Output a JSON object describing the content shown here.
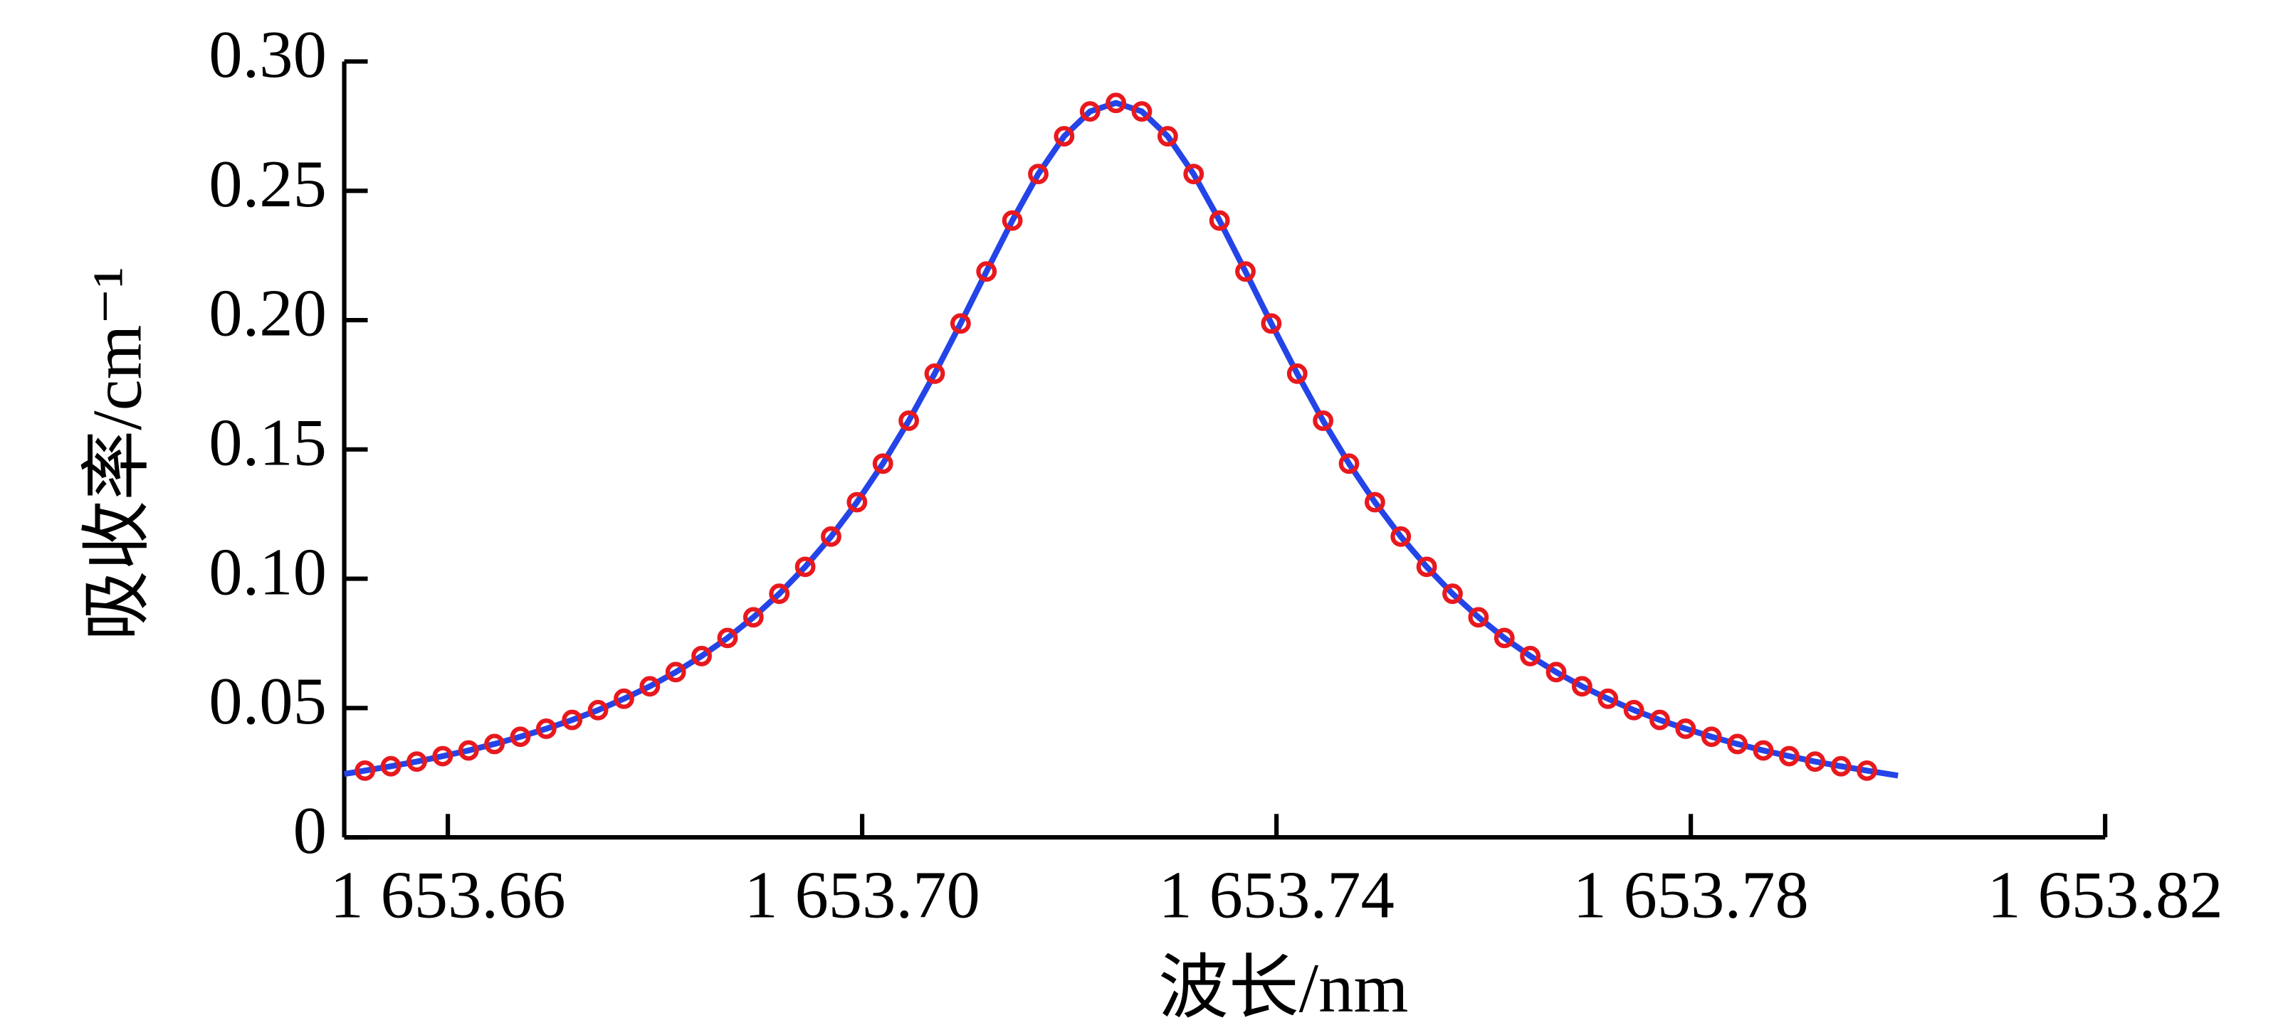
{
  "chart_data": {
    "type": "line",
    "xlabel": "波长/nm",
    "ylabel": "吸收率/cm⁻¹",
    "xlim": [
      1653.65,
      1653.82
    ],
    "ylim": [
      0,
      0.3
    ],
    "xticks": [
      {
        "value": 1653.66,
        "label": "1 653.66"
      },
      {
        "value": 1653.7,
        "label": "1 653.70"
      },
      {
        "value": 1653.74,
        "label": "1 653.74"
      },
      {
        "value": 1653.78,
        "label": "1 653.78"
      },
      {
        "value": 1653.82,
        "label": "1 653.82"
      }
    ],
    "yticks": [
      0,
      0.05,
      {
        "value": 0.1,
        "label": "0.10"
      },
      0.15,
      {
        "value": 0.2,
        "label": "0.20"
      },
      0.25,
      {
        "value": 0.3,
        "label": "0.30"
      }
    ],
    "grid": false,
    "series": [
      {
        "type": "line",
        "color": "#2444e8",
        "x": [
          1653.65,
          1653.652,
          1653.6545,
          1653.657,
          1653.6595,
          1653.662,
          1653.6645,
          1653.667,
          1653.6695,
          1653.672,
          1653.6745,
          1653.677,
          1653.6795,
          1653.682,
          1653.6845,
          1653.687,
          1653.6895,
          1653.692,
          1653.6945,
          1653.697,
          1653.6995,
          1653.702,
          1653.7045,
          1653.707,
          1653.7095,
          1653.712,
          1653.7145,
          1653.717,
          1653.7195,
          1653.722,
          1653.7245,
          1653.727,
          1653.7295,
          1653.732,
          1653.7345,
          1653.737,
          1653.7395,
          1653.742,
          1653.7445,
          1653.747,
          1653.7495,
          1653.752,
          1653.7545,
          1653.757,
          1653.7595,
          1653.762,
          1653.7645,
          1653.767,
          1653.7695,
          1653.772,
          1653.7745,
          1653.777,
          1653.7795,
          1653.782,
          1653.7845,
          1653.787,
          1653.7895,
          1653.792,
          1653.7945,
          1653.797,
          1653.8
        ],
        "values": [
          0.0245,
          0.0258,
          0.0275,
          0.0293,
          0.0314,
          0.0336,
          0.0361,
          0.0389,
          0.042,
          0.0454,
          0.0492,
          0.0536,
          0.0584,
          0.0639,
          0.0701,
          0.0771,
          0.0851,
          0.0942,
          0.1046,
          0.1163,
          0.1296,
          0.1445,
          0.1611,
          0.1793,
          0.1987,
          0.2188,
          0.2385,
          0.2565,
          0.2711,
          0.2807,
          0.284,
          0.2807,
          0.2711,
          0.2565,
          0.2385,
          0.2188,
          0.1987,
          0.1793,
          0.1611,
          0.1445,
          0.1296,
          0.1163,
          0.1046,
          0.0942,
          0.0851,
          0.0771,
          0.0701,
          0.0639,
          0.0584,
          0.0536,
          0.0492,
          0.0454,
          0.042,
          0.0389,
          0.0361,
          0.0336,
          0.0314,
          0.0293,
          0.0275,
          0.0258,
          0.0239
        ]
      },
      {
        "type": "scatter",
        "color": "#e8191e",
        "x": [
          1653.652,
          1653.6545,
          1653.657,
          1653.6595,
          1653.662,
          1653.6645,
          1653.667,
          1653.6695,
          1653.672,
          1653.6745,
          1653.677,
          1653.6795,
          1653.682,
          1653.6845,
          1653.687,
          1653.6895,
          1653.692,
          1653.6945,
          1653.697,
          1653.6995,
          1653.702,
          1653.7045,
          1653.707,
          1653.7095,
          1653.712,
          1653.7145,
          1653.717,
          1653.7195,
          1653.722,
          1653.7245,
          1653.727,
          1653.7295,
          1653.732,
          1653.7345,
          1653.737,
          1653.7395,
          1653.742,
          1653.7445,
          1653.747,
          1653.7495,
          1653.752,
          1653.7545,
          1653.757,
          1653.7595,
          1653.762,
          1653.7645,
          1653.767,
          1653.7695,
          1653.772,
          1653.7745,
          1653.777,
          1653.7795,
          1653.782,
          1653.7845,
          1653.787,
          1653.7895,
          1653.792,
          1653.7945,
          1653.797
        ],
        "values": [
          0.0258,
          0.0275,
          0.0293,
          0.0314,
          0.0336,
          0.0361,
          0.0389,
          0.042,
          0.0454,
          0.0492,
          0.0536,
          0.0584,
          0.0639,
          0.0701,
          0.0771,
          0.0851,
          0.0942,
          0.1046,
          0.1163,
          0.1296,
          0.1445,
          0.1611,
          0.1793,
          0.1987,
          0.2188,
          0.2385,
          0.2565,
          0.2711,
          0.2807,
          0.284,
          0.2807,
          0.2711,
          0.2565,
          0.2385,
          0.2188,
          0.1987,
          0.1793,
          0.1611,
          0.1445,
          0.1296,
          0.1163,
          0.1046,
          0.0942,
          0.0851,
          0.0771,
          0.0701,
          0.0639,
          0.0584,
          0.0536,
          0.0492,
          0.0454,
          0.042,
          0.0389,
          0.0361,
          0.0336,
          0.0314,
          0.0293,
          0.0275,
          0.0258
        ]
      }
    ]
  }
}
